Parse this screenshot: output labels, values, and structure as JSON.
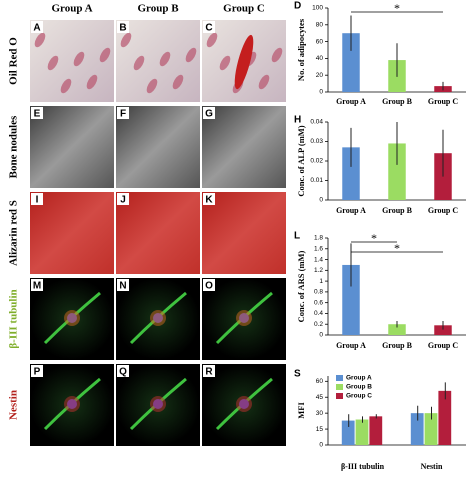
{
  "figure": {
    "column_headers": [
      "Group A",
      "Group B",
      "Group C"
    ],
    "row_labels": [
      "Oil Red O",
      "Bone nodules",
      "Alizarin red S",
      "β-III tubulin",
      "Nestin"
    ],
    "panel_letters": [
      [
        "A",
        "B",
        "C"
      ],
      [
        "E",
        "F",
        "G"
      ],
      [
        "I",
        "J",
        "K"
      ],
      [
        "M",
        "N",
        "O"
      ],
      [
        "P",
        "Q",
        "R"
      ]
    ]
  },
  "chart_data": [
    {
      "type": "bar",
      "letter": "D",
      "ylabel": "No. of adipocytes",
      "categories": [
        "Group A",
        "Group B",
        "Group C"
      ],
      "values": [
        70,
        38,
        7
      ],
      "errors": [
        21,
        20,
        5
      ],
      "colors": [
        "#5b8fd1",
        "#9bdc62",
        "#b31e3c"
      ],
      "ylim": [
        0,
        100
      ],
      "yticks": [
        0,
        20,
        40,
        60,
        80,
        100
      ],
      "significance": [
        {
          "label": "*",
          "between": [
            0,
            2
          ]
        }
      ]
    },
    {
      "type": "bar",
      "letter": "H",
      "ylabel": "Conc. of ALP (mM)",
      "categories": [
        "Group A",
        "Group B",
        "Group C"
      ],
      "values": [
        0.027,
        0.029,
        0.024
      ],
      "errors": [
        0.01,
        0.011,
        0.012
      ],
      "colors": [
        "#5b8fd1",
        "#9bdc62",
        "#b31e3c"
      ],
      "ylim": [
        0,
        0.04
      ],
      "yticks": [
        0,
        0.01,
        0.02,
        0.03,
        0.04
      ]
    },
    {
      "type": "bar",
      "letter": "L",
      "ylabel": "Conc. of ARS (mM)",
      "categories": [
        "Group A",
        "Group B",
        "Group C"
      ],
      "values": [
        1.3,
        0.2,
        0.18
      ],
      "errors": [
        0.4,
        0.06,
        0.08
      ],
      "colors": [
        "#5b8fd1",
        "#9bdc62",
        "#b31e3c"
      ],
      "ylim": [
        0,
        1.8
      ],
      "yticks": [
        0,
        0.2,
        0.4,
        0.6,
        0.8,
        1,
        1.2,
        1.4,
        1.6,
        1.8
      ],
      "significance": [
        {
          "label": "*",
          "between": [
            0,
            1
          ]
        },
        {
          "label": "*",
          "between": [
            0,
            2
          ]
        }
      ]
    },
    {
      "type": "grouped-bar",
      "letter": "S",
      "ylabel": "MFI",
      "categories": [
        "β-III tubulin",
        "Nestin"
      ],
      "series": [
        {
          "name": "Group A",
          "color": "#5b8fd1",
          "values": [
            23,
            30
          ],
          "errors": [
            6,
            7
          ]
        },
        {
          "name": "Group B",
          "color": "#9bdc62",
          "values": [
            24,
            30
          ],
          "errors": [
            3,
            6
          ]
        },
        {
          "name": "Group C",
          "color": "#b31e3c",
          "values": [
            27,
            51
          ],
          "errors": [
            2,
            8
          ]
        }
      ],
      "ylim": [
        0,
        65
      ],
      "yticks": [
        0,
        15,
        30,
        45,
        60
      ],
      "legend": "upper-left"
    }
  ]
}
